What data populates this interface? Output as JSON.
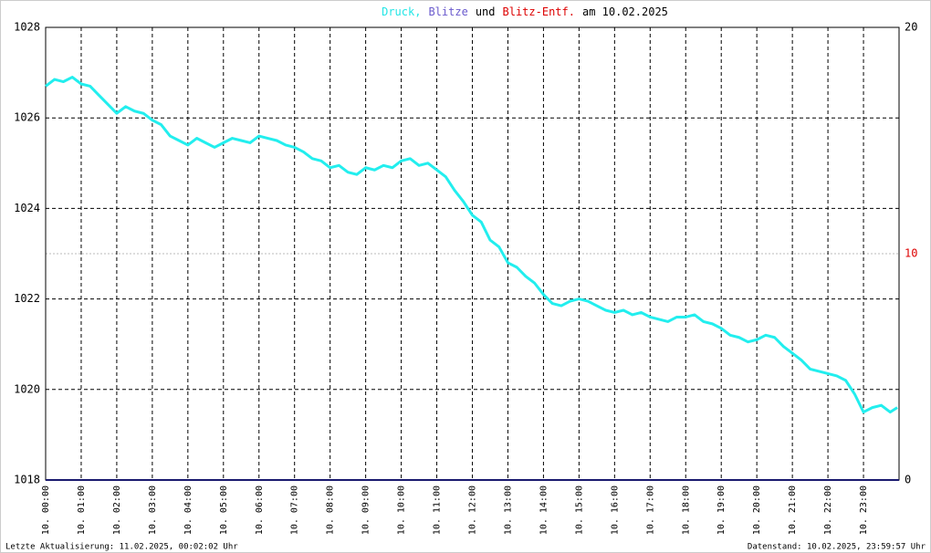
{
  "chart_data": {
    "type": "line",
    "title_parts": [
      {
        "text": "Druck,",
        "color": "#22e6e6"
      },
      {
        "text": "Blitze",
        "color": "#6a5acd"
      },
      {
        "text": "und",
        "color": "#000000"
      },
      {
        "text": "Blitz-Entf.",
        "color": "#dd0000"
      },
      {
        "text": "am 10.02.2025",
        "color": "#000000"
      }
    ],
    "footer_left": "Letzte Aktualisierung: 11.02.2025, 00:02:02 Uhr",
    "footer_right": "Datenstand: 10.02.2025, 23:59:57 Uhr",
    "xlim": [
      0,
      24
    ],
    "xticks": [
      {
        "value": 0,
        "label": "10. 00:00"
      },
      {
        "value": 1,
        "label": "10. 01:00"
      },
      {
        "value": 2,
        "label": "10. 02:00"
      },
      {
        "value": 3,
        "label": "10. 03:00"
      },
      {
        "value": 4,
        "label": "10. 04:00"
      },
      {
        "value": 5,
        "label": "10. 05:00"
      },
      {
        "value": 6,
        "label": "10. 06:00"
      },
      {
        "value": 7,
        "label": "10. 07:00"
      },
      {
        "value": 8,
        "label": "10. 08:00"
      },
      {
        "value": 9,
        "label": "10. 09:00"
      },
      {
        "value": 10,
        "label": "10. 10:00"
      },
      {
        "value": 11,
        "label": "10. 11:00"
      },
      {
        "value": 12,
        "label": "10. 12:00"
      },
      {
        "value": 13,
        "label": "10. 13:00"
      },
      {
        "value": 14,
        "label": "10. 14:00"
      },
      {
        "value": 15,
        "label": "10. 15:00"
      },
      {
        "value": 16,
        "label": "10. 16:00"
      },
      {
        "value": 17,
        "label": "10. 17:00"
      },
      {
        "value": 18,
        "label": "10. 18:00"
      },
      {
        "value": 19,
        "label": "10. 19:00"
      },
      {
        "value": 20,
        "label": "10. 20:00"
      },
      {
        "value": 21,
        "label": "10. 21:00"
      },
      {
        "value": 22,
        "label": "10. 22:00"
      },
      {
        "value": 23,
        "label": "10. 23:00"
      }
    ],
    "ylim": [
      1018,
      1028
    ],
    "yticks": [
      1018,
      1020,
      1022,
      1024,
      1026,
      1028
    ],
    "y2lim": [
      0,
      20
    ],
    "y2ticks": [
      0,
      10,
      20
    ],
    "y2tick_colors": [
      "#000000",
      "#dd0000",
      "#000000"
    ],
    "grid": true,
    "x": [
      0,
      0.25,
      0.5,
      0.75,
      1,
      1.25,
      1.5,
      1.75,
      2,
      2.25,
      2.5,
      2.75,
      3,
      3.25,
      3.5,
      3.75,
      4,
      4.25,
      4.5,
      4.75,
      5,
      5.25,
      5.5,
      5.75,
      6,
      6.25,
      6.5,
      6.75,
      7,
      7.25,
      7.5,
      7.75,
      8,
      8.25,
      8.5,
      8.75,
      9,
      9.25,
      9.5,
      9.75,
      10,
      10.25,
      10.5,
      10.75,
      11,
      11.25,
      11.5,
      11.75,
      12,
      12.25,
      12.5,
      12.75,
      13,
      13.25,
      13.5,
      13.75,
      14,
      14.25,
      14.5,
      14.75,
      15,
      15.25,
      15.5,
      15.75,
      16,
      16.25,
      16.5,
      16.75,
      17,
      17.25,
      17.5,
      17.75,
      18,
      18.25,
      18.5,
      18.75,
      19,
      19.25,
      19.5,
      19.75,
      20,
      20.25,
      20.5,
      20.75,
      21,
      21.25,
      21.5,
      21.75,
      22,
      22.25,
      22.5,
      22.75,
      23,
      23.25,
      23.5,
      23.75,
      23.95
    ],
    "series": [
      {
        "name": "Druck",
        "color": "#22eeee",
        "values": [
          1026.7,
          1026.85,
          1026.8,
          1026.9,
          1026.75,
          1026.7,
          1026.5,
          1026.3,
          1026.1,
          1026.25,
          1026.15,
          1026.1,
          1025.95,
          1025.85,
          1025.6,
          1025.5,
          1025.4,
          1025.55,
          1025.45,
          1025.35,
          1025.45,
          1025.55,
          1025.5,
          1025.45,
          1025.6,
          1025.55,
          1025.5,
          1025.4,
          1025.35,
          1025.25,
          1025.1,
          1025.05,
          1024.9,
          1024.95,
          1024.8,
          1024.75,
          1024.9,
          1024.85,
          1024.95,
          1024.9,
          1025.05,
          1025.1,
          1024.95,
          1025.0,
          1024.85,
          1024.7,
          1024.4,
          1024.15,
          1023.85,
          1023.7,
          1023.3,
          1023.15,
          1022.8,
          1022.7,
          1022.5,
          1022.35,
          1022.1,
          1021.9,
          1021.85,
          1021.95,
          1022.0,
          1021.95,
          1021.85,
          1021.75,
          1021.7,
          1021.75,
          1021.65,
          1021.7,
          1021.6,
          1021.55,
          1021.5,
          1021.6,
          1021.6,
          1021.65,
          1021.5,
          1021.45,
          1021.35,
          1021.2,
          1021.15,
          1021.05,
          1021.1,
          1021.2,
          1021.15,
          1020.95,
          1020.8,
          1020.65,
          1020.45,
          1020.4,
          1020.35,
          1020.3,
          1020.2,
          1019.9,
          1019.5,
          1019.6,
          1019.65,
          1019.5,
          1019.6
        ]
      }
    ]
  }
}
